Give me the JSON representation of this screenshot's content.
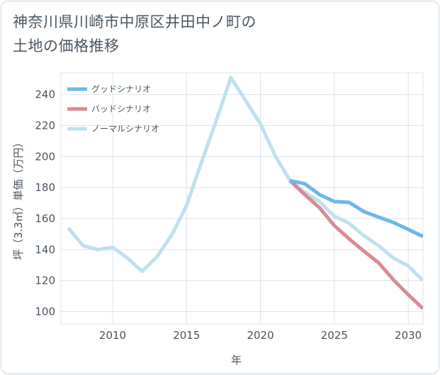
{
  "title_line1": "神奈川県川崎市中原区井田中ノ町の",
  "title_line2": "土地の価格推移",
  "chart_data": {
    "type": "line",
    "title": "神奈川県川崎市中原区井田中ノ町の土地の価格推移",
    "xlabel": "年",
    "ylabel": "坪（3.3㎡）単価（万円）",
    "xlim": [
      2006.5,
      2031
    ],
    "ylim": [
      92,
      254
    ],
    "x_ticks": [
      2010,
      2015,
      2020,
      2025,
      2030
    ],
    "y_ticks": [
      100,
      120,
      140,
      160,
      180,
      200,
      220,
      240
    ],
    "legend": [
      "グッドシナリオ",
      "バッドシナリオ",
      "ノーマルシナリオ"
    ],
    "legend_position": "top-left",
    "series": [
      {
        "name": "グッドシナリオ",
        "color": "#6bb7ec",
        "x": [
          2022,
          2023,
          2024,
          2025,
          2026,
          2027,
          2028,
          2029,
          2030,
          2031
        ],
        "y": [
          184.5,
          182.5,
          175.5,
          171,
          170.5,
          164.5,
          161,
          157.5,
          153,
          148.5
        ]
      },
      {
        "name": "バッドシナリオ",
        "color": "#d98b92",
        "x": [
          2022,
          2023,
          2024,
          2025,
          2026,
          2027,
          2028,
          2029,
          2030,
          2031
        ],
        "y": [
          184.5,
          175.5,
          167,
          155.5,
          147,
          139,
          131.5,
          120.5,
          111,
          102
        ]
      },
      {
        "name": "ノーマルシナリオ",
        "color": "#bfe0ef",
        "x": [
          2007,
          2008,
          2009,
          2010,
          2011,
          2012,
          2013,
          2014,
          2015,
          2016,
          2017,
          2018,
          2019,
          2020,
          2021,
          2022,
          2023,
          2024,
          2025,
          2026,
          2027,
          2028,
          2029,
          2030,
          2031
        ],
        "y": [
          154,
          142.5,
          140,
          141.5,
          134.5,
          126,
          135.5,
          149.5,
          168.5,
          196,
          223,
          251,
          236,
          221,
          200.5,
          184.5,
          177,
          171,
          161.5,
          157,
          149,
          142.5,
          134.5,
          129.5,
          120
        ]
      }
    ]
  }
}
